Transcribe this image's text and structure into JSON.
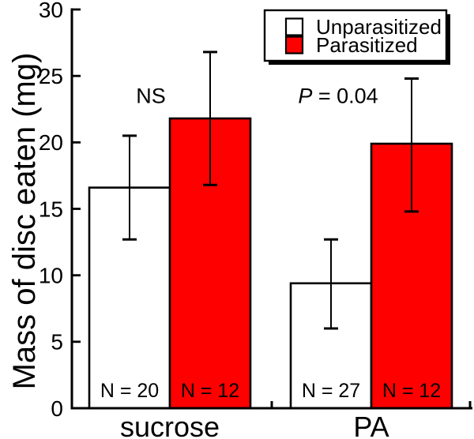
{
  "figure": {
    "background_color": "#FFFFFF",
    "outline_color": "#000000",
    "text_color": "#000000"
  },
  "chart_data": {
    "type": "bar",
    "title": "",
    "xlabel": "",
    "ylabel": "Mass of disc eaten (mg)",
    "ylim": [
      0,
      30
    ],
    "yticks": [
      0,
      5,
      10,
      15,
      20,
      25,
      30
    ],
    "categories": [
      "sucrose",
      "PA"
    ],
    "grid": false,
    "legend_position": "top-right",
    "legend_entries": [
      "Unparasitized",
      "Parasitized"
    ],
    "series": [
      {
        "name": "Unparasitized",
        "color": "#FFFFFF",
        "values": [
          16.6,
          9.4
        ],
        "error_high": [
          20.5,
          12.7
        ],
        "error_low": [
          12.7,
          6.0
        ],
        "bar_labels": [
          "N = 20",
          "N = 27"
        ]
      },
      {
        "name": "Parasitized",
        "color": "#FF0000",
        "values": [
          21.8,
          19.9
        ],
        "error_high": [
          26.8,
          24.8
        ],
        "error_low": [
          16.8,
          14.8
        ],
        "bar_labels": [
          "N = 12",
          "N = 12"
        ]
      }
    ],
    "annotations": [
      {
        "italic_prefix": "",
        "text": "NS",
        "group": "sucrose"
      },
      {
        "italic_prefix": "P",
        "text": " = 0.04",
        "group": "PA"
      }
    ]
  }
}
